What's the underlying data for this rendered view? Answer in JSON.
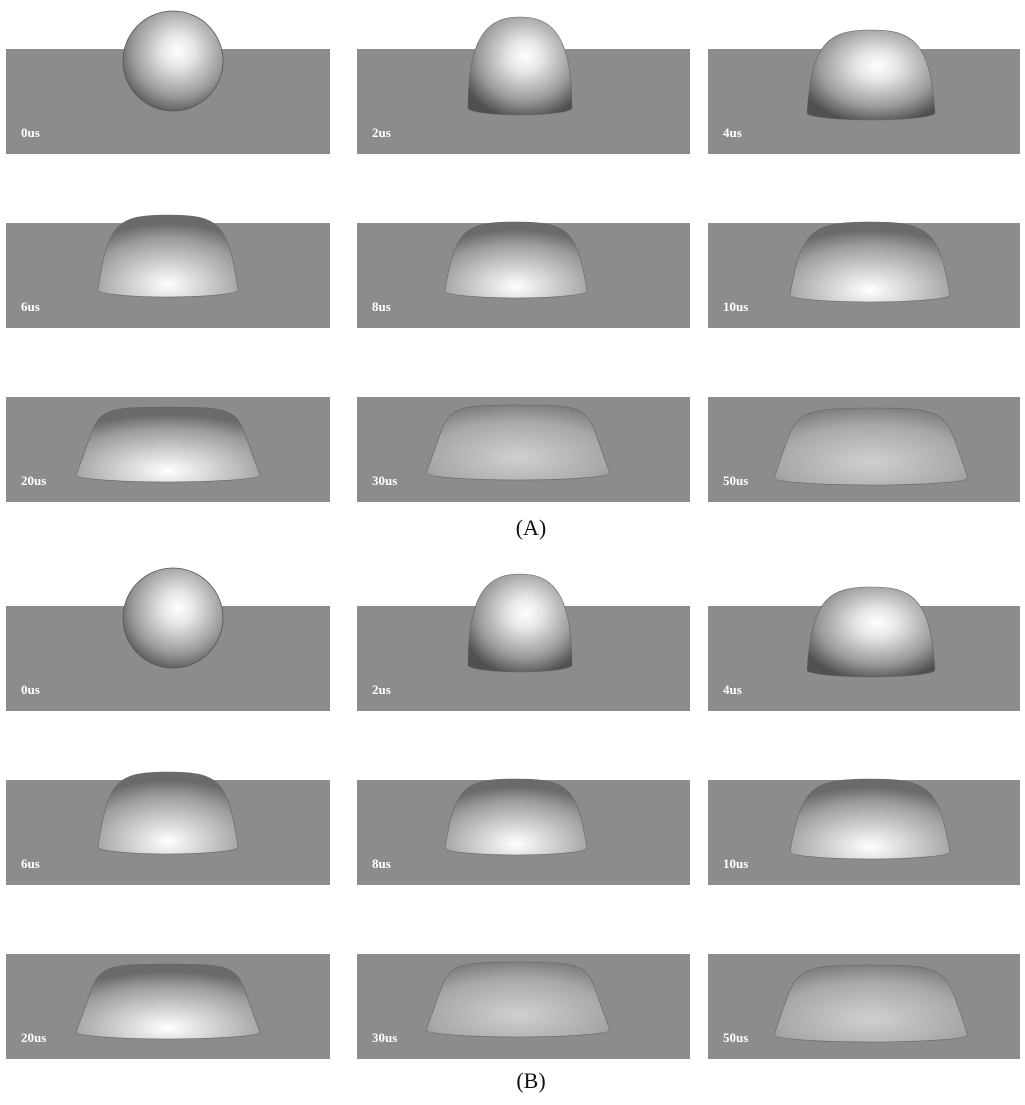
{
  "figures": [
    {
      "caption": "(A)",
      "panels": [
        "0us",
        "2us",
        "4us",
        "6us",
        "8us",
        "10us",
        "20us",
        "30us",
        "50us"
      ]
    },
    {
      "caption": "(B)",
      "panels": [
        "0us",
        "2us",
        "4us",
        "6us",
        "8us",
        "10us",
        "20us",
        "30us",
        "50us"
      ]
    }
  ]
}
